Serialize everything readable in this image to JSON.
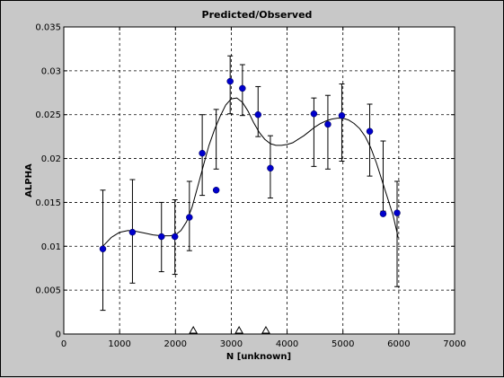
{
  "chart_data": {
    "type": "scatter",
    "title": "Predicted/Observed",
    "xlabel": "N [unknown]",
    "ylabel": "ALPHA",
    "xlim": [
      0,
      7000
    ],
    "ylim": [
      0,
      0.035
    ],
    "xticks": [
      0,
      1000,
      2000,
      3000,
      4000,
      5000,
      6000,
      7000
    ],
    "yticks": [
      0,
      0.005,
      0.01,
      0.015,
      0.02,
      0.025,
      0.03,
      0.035
    ],
    "xtick_labels": [
      "0",
      "1000",
      "2000",
      "3000",
      "4000",
      "5000",
      "6000",
      "7000"
    ],
    "ytick_labels": [
      "0",
      "0.005",
      "0.01",
      "0.015",
      "0.02",
      "0.025",
      "0.03",
      "0.035"
    ],
    "grid": true,
    "marker_color": "#0000cc",
    "observed": [
      {
        "x": 700,
        "y": 0.0097,
        "lo": 0.0027,
        "hi": 0.0164
      },
      {
        "x": 1230,
        "y": 0.0116,
        "lo": 0.0058,
        "hi": 0.0176
      },
      {
        "x": 1750,
        "y": 0.0111,
        "lo": 0.0071,
        "hi": 0.015
      },
      {
        "x": 1990,
        "y": 0.0111,
        "lo": 0.0068,
        "hi": 0.0153
      },
      {
        "x": 2250,
        "y": 0.0133,
        "lo": 0.0095,
        "hi": 0.0174
      },
      {
        "x": 2480,
        "y": 0.0206,
        "lo": 0.0158,
        "hi": 0.025
      },
      {
        "x": 2730,
        "y": 0.0164,
        "lo": 0.0188,
        "hi": 0.0256
      },
      {
        "x": 2980,
        "y": 0.0288,
        "lo": 0.0251,
        "hi": 0.0317
      },
      {
        "x": 3200,
        "y": 0.028,
        "lo": 0.0249,
        "hi": 0.0307
      },
      {
        "x": 3480,
        "y": 0.025,
        "lo": 0.0225,
        "hi": 0.0282
      },
      {
        "x": 3700,
        "y": 0.0189,
        "lo": 0.0155,
        "hi": 0.0226
      },
      {
        "x": 4480,
        "y": 0.0251,
        "lo": 0.0191,
        "hi": 0.0269
      },
      {
        "x": 4730,
        "y": 0.0239,
        "lo": 0.0188,
        "hi": 0.0272
      },
      {
        "x": 4980,
        "y": 0.0249,
        "lo": 0.0197,
        "hi": 0.0285
      },
      {
        "x": 5480,
        "y": 0.0231,
        "lo": 0.018,
        "hi": 0.0262
      },
      {
        "x": 5720,
        "y": 0.0137,
        "lo": 0.014,
        "hi": 0.022
      },
      {
        "x": 5970,
        "y": 0.0138,
        "lo": 0.0054,
        "hi": 0.0174
      }
    ],
    "predicted_curve": [
      [
        700,
        0.01
      ],
      [
        850,
        0.011
      ],
      [
        1000,
        0.0116
      ],
      [
        1150,
        0.0118
      ],
      [
        1300,
        0.0117
      ],
      [
        1450,
        0.0115
      ],
      [
        1600,
        0.0113
      ],
      [
        1750,
        0.0112
      ],
      [
        1900,
        0.0112
      ],
      [
        2000,
        0.0113
      ],
      [
        2100,
        0.0118
      ],
      [
        2200,
        0.0128
      ],
      [
        2300,
        0.0145
      ],
      [
        2400,
        0.0168
      ],
      [
        2500,
        0.0192
      ],
      [
        2600,
        0.0215
      ],
      [
        2700,
        0.0233
      ],
      [
        2800,
        0.0248
      ],
      [
        2900,
        0.0261
      ],
      [
        3000,
        0.0268
      ],
      [
        3100,
        0.0269
      ],
      [
        3200,
        0.0264
      ],
      [
        3300,
        0.0254
      ],
      [
        3400,
        0.0241
      ],
      [
        3500,
        0.023
      ],
      [
        3600,
        0.0222
      ],
      [
        3700,
        0.0217
      ],
      [
        3800,
        0.0215
      ],
      [
        3900,
        0.0215
      ],
      [
        4000,
        0.0216
      ],
      [
        4100,
        0.0218
      ],
      [
        4200,
        0.0222
      ],
      [
        4300,
        0.0226
      ],
      [
        4400,
        0.0231
      ],
      [
        4500,
        0.0236
      ],
      [
        4600,
        0.024
      ],
      [
        4700,
        0.0243
      ],
      [
        4800,
        0.0245
      ],
      [
        4900,
        0.0246
      ],
      [
        5000,
        0.0246
      ],
      [
        5100,
        0.0244
      ],
      [
        5200,
        0.024
      ],
      [
        5300,
        0.0234
      ],
      [
        5400,
        0.0225
      ],
      [
        5500,
        0.0212
      ],
      [
        5600,
        0.0195
      ],
      [
        5700,
        0.0175
      ],
      [
        5800,
        0.0155
      ],
      [
        5900,
        0.0135
      ],
      [
        5960,
        0.0118
      ],
      [
        5990,
        0.011
      ]
    ],
    "markers": [
      2320,
      3140,
      3620
    ]
  }
}
